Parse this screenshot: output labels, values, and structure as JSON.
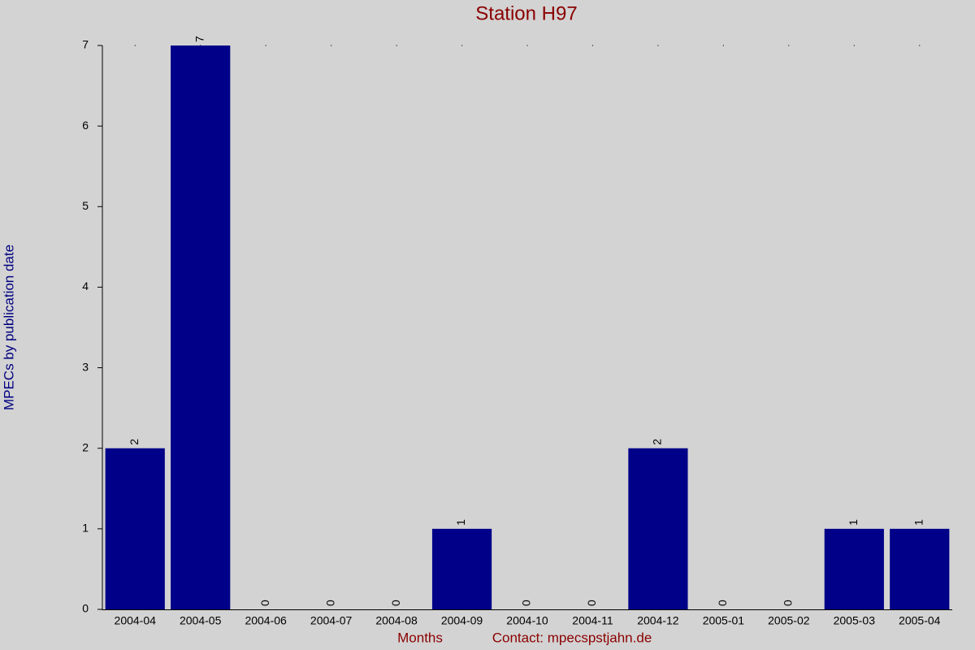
{
  "chart_data": {
    "type": "bar",
    "title": "Station H97",
    "x_label": "Months",
    "y_label": "MPECs by publication date",
    "footer": "Contact: mpecspstjahn.de",
    "categories": [
      "2004-04",
      "2004-05",
      "2004-06",
      "2004-07",
      "2004-08",
      "2004-09",
      "2004-10",
      "2004-11",
      "2004-12",
      "2005-01",
      "2005-02",
      "2005-03",
      "2005-04"
    ],
    "values": [
      2,
      7,
      0,
      0,
      0,
      1,
      0,
      0,
      2,
      0,
      0,
      1,
      1
    ],
    "color": "#000088",
    "ylim": [
      0,
      7
    ],
    "yticks": [
      0,
      1,
      2,
      3,
      4,
      5,
      6,
      7
    ],
    "grid": false
  }
}
